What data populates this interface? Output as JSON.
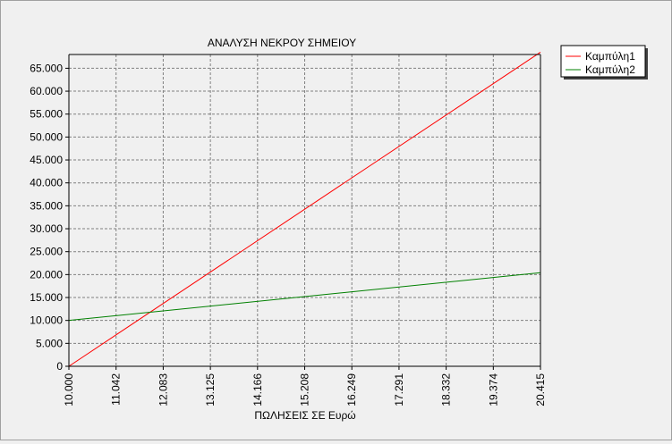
{
  "chart_data": {
    "type": "line",
    "title": "ΑΝΑΛΥΣΗ ΝΕΚΡΟΥ ΣΗΜΕΙΟΥ",
    "xlabel": "ΠΩΛΗΣΕΙΣ ΣΕ Ευρώ",
    "ylabel": "",
    "xlim": [
      10000,
      20415
    ],
    "ylim": [
      0,
      68000
    ],
    "x_ticks": [
      {
        "value": 10000,
        "label": "10.000"
      },
      {
        "value": 11042,
        "label": "11.042"
      },
      {
        "value": 12083,
        "label": "12.083"
      },
      {
        "value": 13125,
        "label": "13.125"
      },
      {
        "value": 14166,
        "label": "14.166"
      },
      {
        "value": 15208,
        "label": "15.208"
      },
      {
        "value": 16249,
        "label": "16.249"
      },
      {
        "value": 17291,
        "label": "17.291"
      },
      {
        "value": 18332,
        "label": "18.332"
      },
      {
        "value": 19374,
        "label": "19.374"
      },
      {
        "value": 20415,
        "label": "20.415"
      }
    ],
    "y_ticks": [
      {
        "value": 0,
        "label": "0"
      },
      {
        "value": 5000,
        "label": "5.000"
      },
      {
        "value": 10000,
        "label": "10.000"
      },
      {
        "value": 15000,
        "label": "15.000"
      },
      {
        "value": 20000,
        "label": "20.000"
      },
      {
        "value": 25000,
        "label": "25.000"
      },
      {
        "value": 30000,
        "label": "30.000"
      },
      {
        "value": 35000,
        "label": "35.000"
      },
      {
        "value": 40000,
        "label": "40.000"
      },
      {
        "value": 45000,
        "label": "45.000"
      },
      {
        "value": 50000,
        "label": "50.000"
      },
      {
        "value": 55000,
        "label": "55.000"
      },
      {
        "value": 60000,
        "label": "60.000"
      },
      {
        "value": 65000,
        "label": "65.000"
      }
    ],
    "series": [
      {
        "name": "Καμπύλη1",
        "color": "#ff0000",
        "x": [
          10000,
          20415
        ],
        "y": [
          0,
          68500
        ]
      },
      {
        "name": "Καμπύλη2",
        "color": "#008000",
        "x": [
          10000,
          20415
        ],
        "y": [
          10000,
          20400
        ]
      }
    ],
    "grid": true,
    "legend_position": "top-right",
    "colors": {
      "plot_background": "#f0f0f0",
      "grid": "#808080",
      "axis": "#000000"
    }
  }
}
